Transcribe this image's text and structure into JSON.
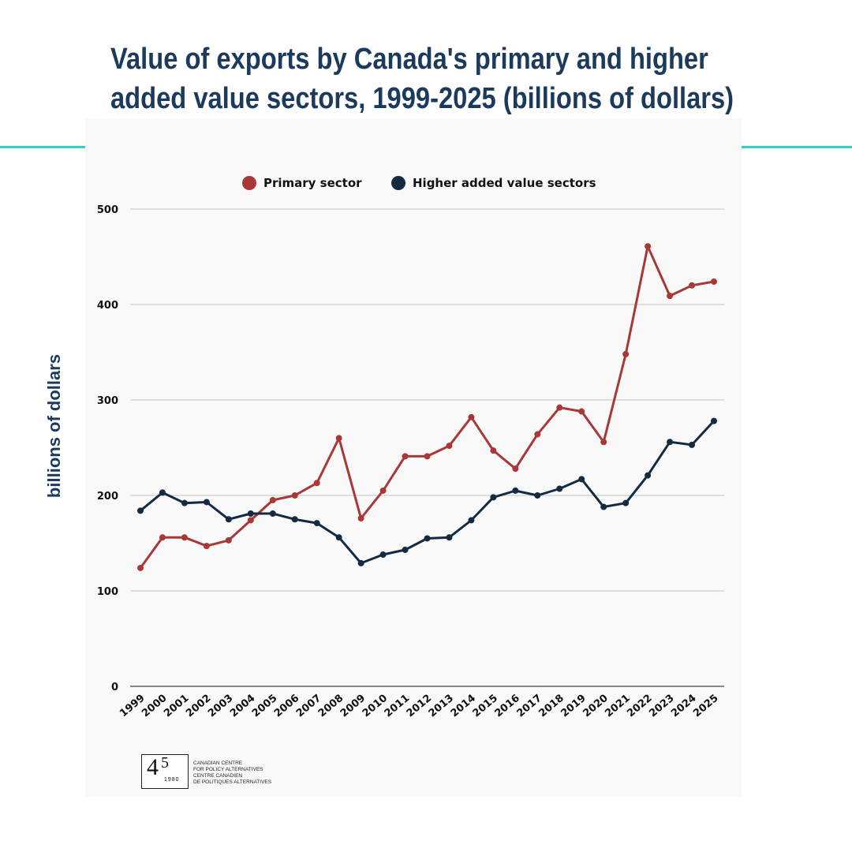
{
  "title_lines": [
    "Value of exports by Canada's primary and higher",
    "added value sectors, 1999-2025 (billions of dollars)"
  ],
  "colors": {
    "primary": "#a83838",
    "higher": "#142a40",
    "accent": "#2ed3c1",
    "title": "#1b3a5c"
  },
  "chart_data": {
    "type": "line",
    "title": "Value of exports by Canada's primary and higher added value sectors, 1999-2025 (billions of dollars)",
    "xlabel": "",
    "ylabel": "billions of dollars",
    "ylim": [
      0,
      500
    ],
    "yticks": [
      "0",
      "100",
      "200",
      "300",
      "400",
      "500"
    ],
    "grid": true,
    "legend_position": "top",
    "categories": [
      "1999",
      "2000",
      "2001",
      "2002",
      "2003",
      "2004",
      "2005",
      "2006",
      "2007",
      "2008",
      "2009",
      "2010",
      "2011",
      "2012",
      "2013",
      "2014",
      "2015",
      "2016",
      "2017",
      "2018",
      "2019",
      "2020",
      "2021",
      "2022",
      "2023",
      "2024",
      "2025"
    ],
    "series": [
      {
        "name": "Primary sector",
        "color": "#a83838",
        "values": [
          124,
          156,
          156,
          147,
          153,
          174,
          195,
          200,
          213,
          260,
          176,
          205,
          241,
          241,
          252,
          282,
          247,
          228,
          264,
          292,
          288,
          256,
          348,
          461,
          409,
          420,
          424
        ]
      },
      {
        "name": "Higher added value sectors",
        "color": "#142a40",
        "values": [
          184,
          203,
          192,
          193,
          175,
          181,
          181,
          175,
          171,
          156,
          129,
          138,
          143,
          155,
          156,
          174,
          198,
          205,
          200,
          207,
          217,
          188,
          192,
          221,
          256,
          253,
          278
        ]
      }
    ]
  },
  "logo": {
    "number": "4",
    "superscript": "5",
    "year": "1980",
    "lines": [
      "Canadian Centre",
      "for Policy Alternatives",
      "Centre canadien",
      "de politiques alternatives"
    ]
  }
}
